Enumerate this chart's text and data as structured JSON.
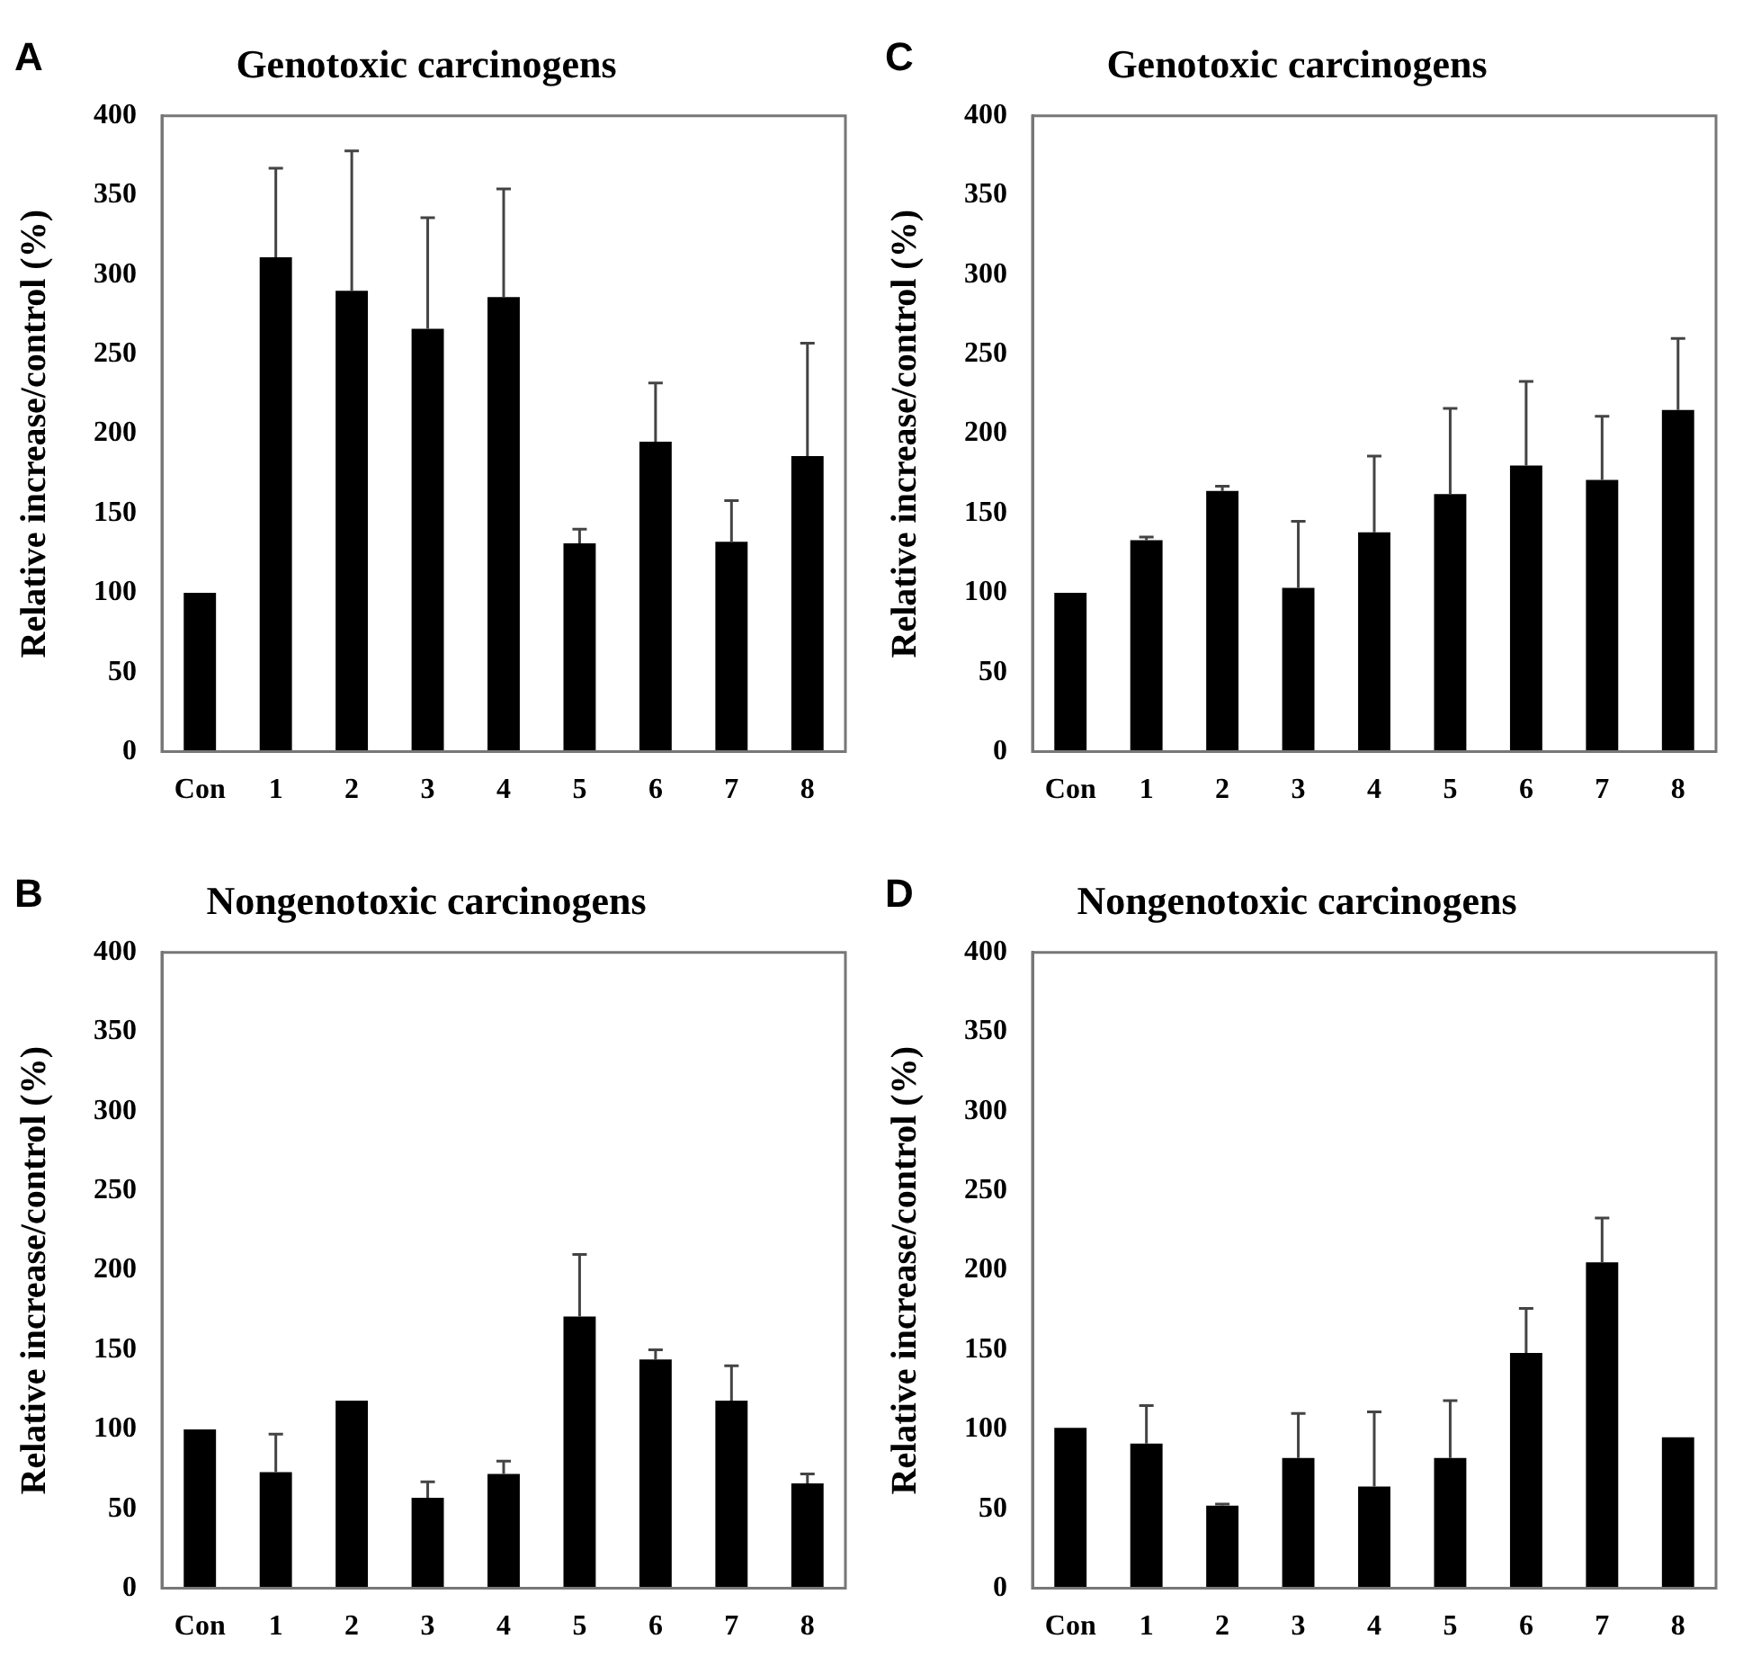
{
  "chart_data": [
    {
      "type": "bar",
      "title": "Genotoxic carcinogens",
      "ylabel": "Relative increase/control (%)",
      "annotations": [
        "A"
      ],
      "categories": [
        "Con",
        "1",
        "2",
        "3",
        "4",
        "5",
        "6",
        "7",
        "8"
      ],
      "color": "#000000",
      "values": [
        100,
        311,
        290,
        266,
        286,
        131,
        195,
        132,
        186
      ],
      "errors": [
        null,
        [
          311,
          367
        ],
        [
          290,
          378
        ],
        [
          266,
          336
        ],
        [
          286,
          354
        ],
        [
          131,
          140
        ],
        [
          195,
          232
        ],
        [
          132,
          158
        ],
        [
          186,
          257
        ]
      ],
      "ylim": [
        0,
        400
      ],
      "yticks": [
        0,
        50,
        100,
        150,
        200,
        250,
        300,
        350,
        400
      ],
      "grid": false
    },
    {
      "type": "bar",
      "title": "Genotoxic carcinogens",
      "ylabel": "Relative increase/control (%)",
      "annotations": [
        "C"
      ],
      "categories": [
        "Con",
        "1",
        "2",
        "3",
        "4",
        "5",
        "6",
        "7",
        "8"
      ],
      "color": "#000000",
      "values": [
        100,
        133,
        164,
        103,
        138,
        162,
        180,
        171,
        215
      ],
      "errors": [
        null,
        [
          133,
          135
        ],
        [
          164,
          167
        ],
        [
          103,
          145
        ],
        [
          138,
          186
        ],
        [
          162,
          216
        ],
        [
          180,
          233
        ],
        [
          171,
          211
        ],
        [
          215,
          260
        ]
      ],
      "ylim": [
        0,
        400
      ],
      "yticks": [
        0,
        50,
        100,
        150,
        200,
        250,
        300,
        350,
        400
      ],
      "grid": false
    },
    {
      "type": "bar",
      "title": "Nongenotoxic carcinogens",
      "ylabel": "Relative increase/control (%)",
      "annotations": [
        "B"
      ],
      "categories": [
        "Con",
        "1",
        "2",
        "3",
        "4",
        "5",
        "6",
        "7",
        "8"
      ],
      "color": "#000000",
      "values": [
        100,
        73,
        118,
        57,
        72,
        171,
        144,
        118,
        66
      ],
      "errors": [
        null,
        [
          73,
          97
        ],
        null,
        [
          57,
          67
        ],
        [
          72,
          80
        ],
        [
          171,
          210
        ],
        [
          144,
          150
        ],
        [
          118,
          140
        ],
        [
          66,
          72
        ]
      ],
      "ylim": [
        0,
        400
      ],
      "yticks": [
        0,
        50,
        100,
        150,
        200,
        250,
        300,
        350,
        400
      ],
      "grid": false
    },
    {
      "type": "bar",
      "title": "Nongenotoxic carcinogens",
      "ylabel": "Relative increase/control (%)",
      "annotations": [
        "D"
      ],
      "categories": [
        "Con",
        "1",
        "2",
        "3",
        "4",
        "5",
        "6",
        "7",
        "8"
      ],
      "color": "#000000",
      "values": [
        101,
        91,
        52,
        82,
        64,
        82,
        148,
        205,
        95
      ],
      "errors": [
        null,
        [
          91,
          115
        ],
        [
          52,
          53
        ],
        [
          82,
          110
        ],
        [
          64,
          111
        ],
        [
          82,
          118
        ],
        [
          148,
          176
        ],
        [
          205,
          233
        ],
        null
      ],
      "ylim": [
        0,
        400
      ],
      "yticks": [
        0,
        50,
        100,
        150,
        200,
        250,
        300,
        350,
        400
      ],
      "grid": false
    }
  ]
}
